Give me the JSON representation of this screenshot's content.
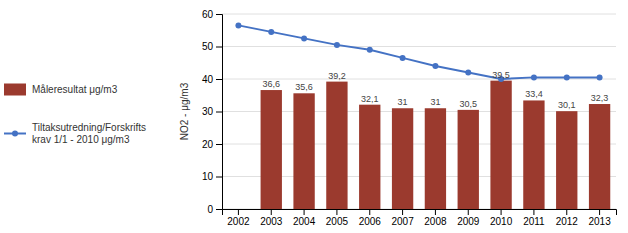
{
  "chart_data": {
    "type": "bar",
    "categories": [
      "2002",
      "2003",
      "2004",
      "2005",
      "2006",
      "2007",
      "2008",
      "2009",
      "2010",
      "2011",
      "2012",
      "2013"
    ],
    "ylabel": "NO2 - μg/m3",
    "ylim": [
      0,
      60
    ],
    "yticks": [
      0,
      10,
      20,
      30,
      40,
      50,
      60
    ],
    "grid": true,
    "legend": "left",
    "series": [
      {
        "name": "Måleresultat μg/m3",
        "type": "bar",
        "color": "#9B3A2E",
        "values": [
          null,
          36.6,
          35.6,
          39.2,
          32.1,
          31.0,
          31.0,
          30.5,
          39.5,
          33.4,
          30.1,
          32.3
        ],
        "data_labels": true,
        "value_labels": [
          null,
          "36,6",
          "35,6",
          "39,2",
          "32,1",
          "31",
          "31",
          "30,5",
          "39,5",
          "33,4",
          "30,1",
          "32,3"
        ]
      },
      {
        "name": "Tiltaksutredning/Forskrifts\nkrav 1/1 - 2010 μg/m3",
        "type": "line",
        "color": "#4472C4",
        "marker": "circle",
        "values": [
          56.5,
          54.5,
          52.5,
          50.5,
          49.0,
          46.5,
          44.0,
          42.0,
          40.0,
          40.5,
          40.5,
          40.5
        ]
      }
    ]
  }
}
